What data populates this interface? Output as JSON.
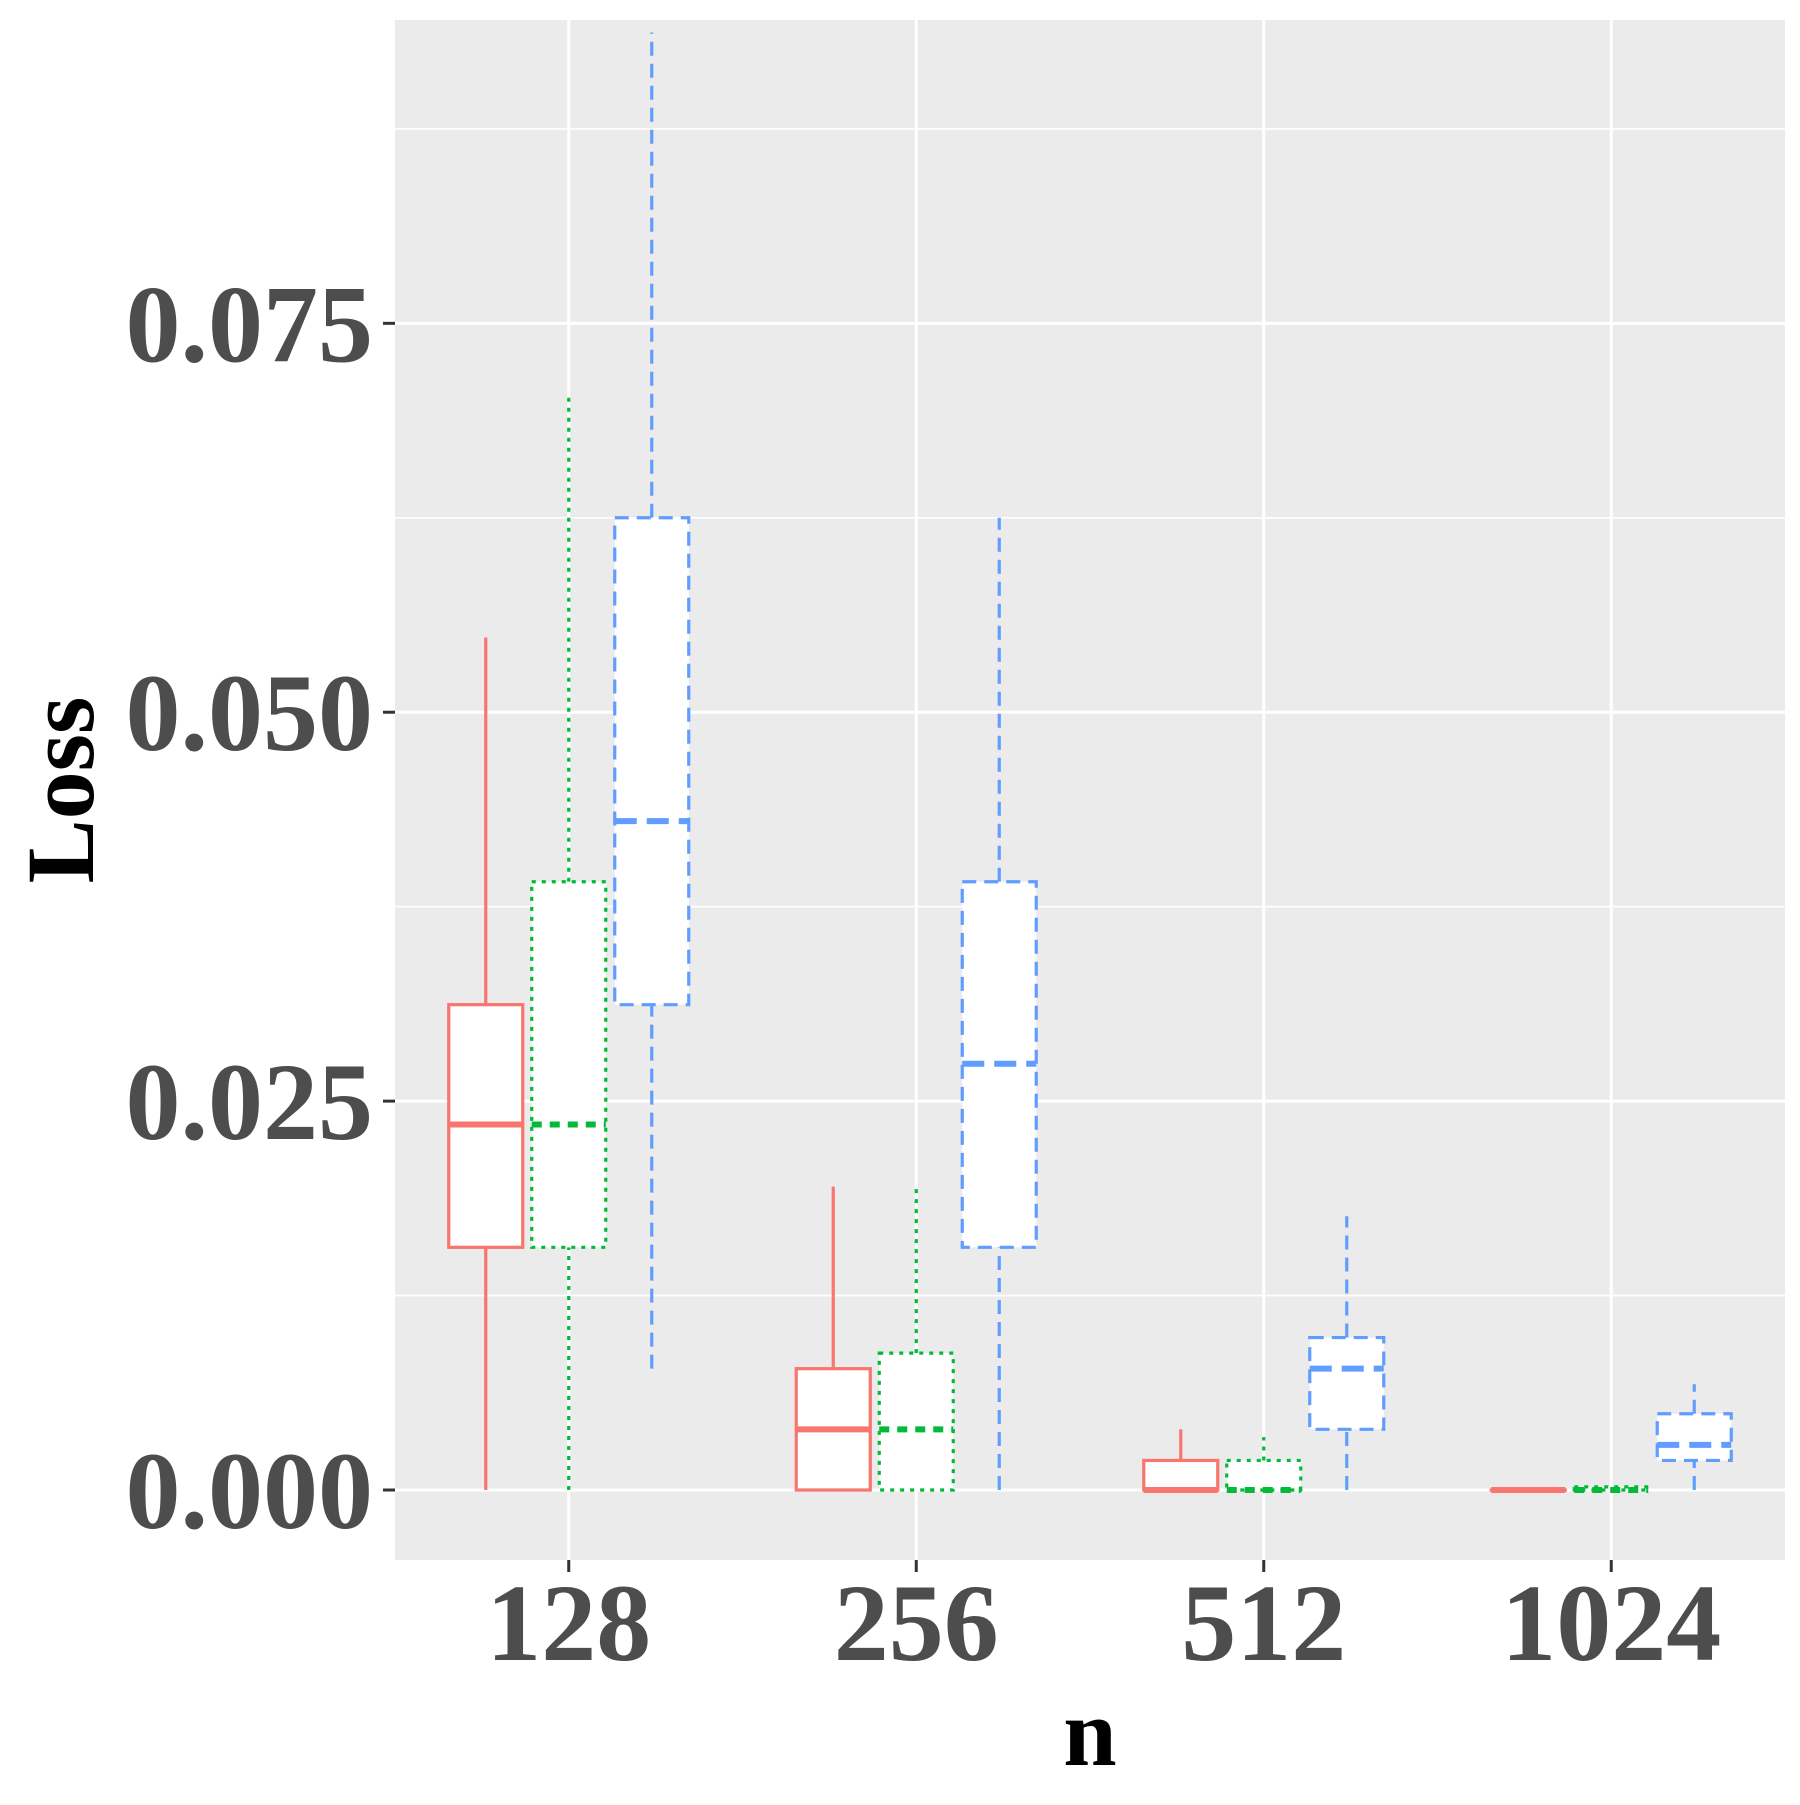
{
  "chart_data": {
    "type": "boxplot",
    "xlabel": "n",
    "ylabel": "Loss",
    "categories": [
      "128",
      "256",
      "512",
      "1024"
    ],
    "y_ticks": [
      0.0,
      0.025,
      0.05,
      0.075
    ],
    "y_tick_labels": [
      "0.000",
      "0.025",
      "0.050",
      "0.075"
    ],
    "ylim": [
      -0.0045,
      0.0945
    ],
    "grid": true,
    "legend": "none",
    "background": "#ebebeb",
    "series": [
      {
        "color": "#f8766d",
        "linestyle": "solid",
        "boxes": [
          {
            "min": 0.0,
            "q1": 0.0156,
            "median": 0.0235,
            "q3": 0.0312,
            "max": 0.0548
          },
          {
            "min": 0.0,
            "q1": 0.0,
            "median": 0.0039,
            "q3": 0.0078,
            "max": 0.0195
          },
          {
            "min": 0.0,
            "q1": 0.0,
            "median": 0.0,
            "q3": 0.0019,
            "max": 0.0039
          },
          {
            "min": 0.0,
            "q1": 0.0,
            "median": 0.0,
            "q3": 0.0,
            "max": 0.0
          }
        ]
      },
      {
        "color": "#00ba38",
        "linestyle": "dotted",
        "boxes": [
          {
            "min": 0.0,
            "q1": 0.0156,
            "median": 0.0235,
            "q3": 0.0391,
            "max": 0.0703
          },
          {
            "min": 0.0,
            "q1": 0.0,
            "median": 0.0039,
            "q3": 0.0088,
            "max": 0.0195
          },
          {
            "min": 0.0,
            "q1": 0.0,
            "median": 0.0,
            "q3": 0.0019,
            "max": 0.0034
          },
          {
            "min": 0.0,
            "q1": 0.0,
            "median": 0.0,
            "q3": 0.0002,
            "max": 0.0002
          }
        ]
      },
      {
        "color": "#619cff",
        "linestyle": "dashed",
        "boxes": [
          {
            "min": 0.0078,
            "q1": 0.0312,
            "median": 0.043,
            "q3": 0.0625,
            "max": 0.0937
          },
          {
            "min": 0.0,
            "q1": 0.0156,
            "median": 0.0274,
            "q3": 0.0391,
            "max": 0.0625
          },
          {
            "min": 0.0,
            "q1": 0.0039,
            "median": 0.0078,
            "q3": 0.0098,
            "max": 0.0176
          },
          {
            "min": 0.0,
            "q1": 0.0019,
            "median": 0.0029,
            "q3": 0.0049,
            "max": 0.0068
          }
        ]
      }
    ]
  }
}
